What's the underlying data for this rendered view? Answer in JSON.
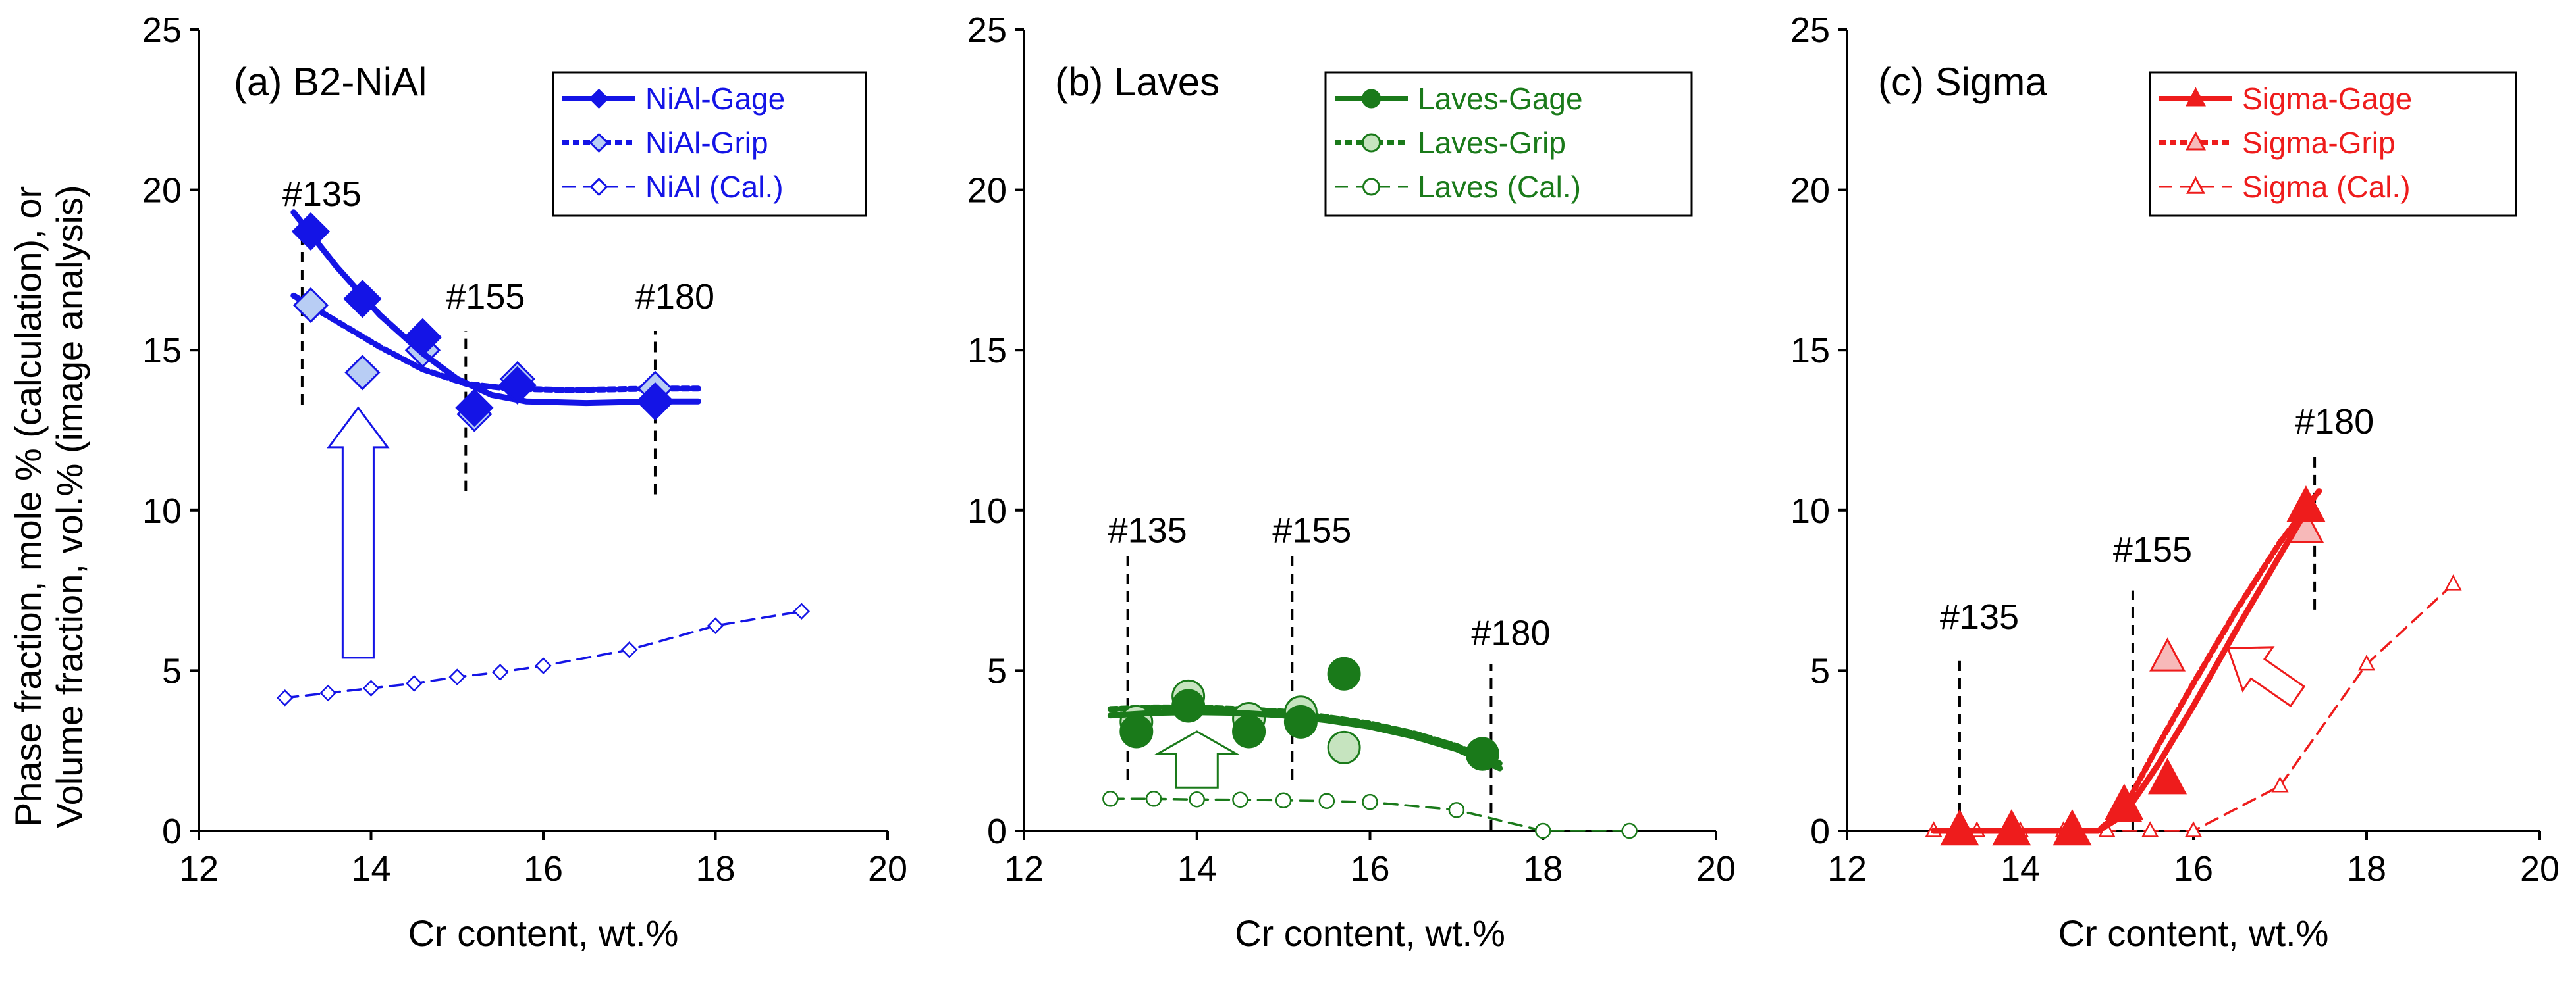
{
  "figure": {
    "ylabel_line1": "Phase fraction, mole %  (calculation), or",
    "ylabel_line2": "Volume fraction, vol.% (image analysis)"
  },
  "chart_data": [
    {
      "type": "scatter",
      "title": "(a) B2-NiAl",
      "xlabel": "Cr content, wt.%",
      "xlim": [
        12,
        20
      ],
      "ylim": [
        0,
        25
      ],
      "xticks": [
        "12",
        "14",
        "16",
        "18",
        "20"
      ],
      "yticks": [
        "0",
        "5",
        "10",
        "15",
        "20",
        "25"
      ],
      "color": "#1414e6",
      "light_fill": "#b8cdf4",
      "legend": [
        "NiAl-Gage",
        "NiAl-Grip",
        "NiAl (Cal.)"
      ],
      "series": [
        {
          "name": "NiAl-Gage",
          "marker": "diamond",
          "filled": true,
          "points": [
            [
              13.3,
              18.7
            ],
            [
              13.9,
              16.6
            ],
            [
              14.6,
              15.4
            ],
            [
              15.2,
              13.2
            ],
            [
              15.7,
              13.9
            ],
            [
              17.3,
              13.4
            ]
          ],
          "fit": [
            [
              13.1,
              19.3
            ],
            [
              13.6,
              17.6
            ],
            [
              14.1,
              16.1
            ],
            [
              14.6,
              14.9
            ],
            [
              15.0,
              14.1
            ],
            [
              15.4,
              13.6
            ],
            [
              15.8,
              13.4
            ],
            [
              16.5,
              13.35
            ],
            [
              17.3,
              13.4
            ],
            [
              17.8,
              13.4
            ]
          ]
        },
        {
          "name": "NiAl-Grip",
          "marker": "diamond",
          "filled": "light",
          "points": [
            [
              13.3,
              16.4
            ],
            [
              13.9,
              14.3
            ],
            [
              14.6,
              15.0
            ],
            [
              15.2,
              13.0
            ],
            [
              15.7,
              14.1
            ],
            [
              17.3,
              13.8
            ]
          ],
          "fit": [
            [
              13.1,
              16.7
            ],
            [
              13.6,
              15.9
            ],
            [
              14.1,
              15.1
            ],
            [
              14.6,
              14.4
            ],
            [
              15.1,
              13.95
            ],
            [
              15.6,
              13.8
            ],
            [
              16.3,
              13.75
            ],
            [
              17.3,
              13.8
            ],
            [
              17.8,
              13.8
            ]
          ]
        },
        {
          "name": "NiAl (Cal.)",
          "marker": "diamond",
          "filled": false,
          "points": [
            [
              13.0,
              4.15
            ],
            [
              13.5,
              4.3
            ],
            [
              14.0,
              4.45
            ],
            [
              14.5,
              4.6
            ],
            [
              15.0,
              4.8
            ],
            [
              15.5,
              4.95
            ],
            [
              16.0,
              5.15
            ],
            [
              17.0,
              5.65
            ],
            [
              18.0,
              6.4
            ],
            [
              19.0,
              6.85
            ]
          ]
        }
      ],
      "annotations": [
        {
          "label": "#135",
          "x": 13.2,
          "y_from": 13.3,
          "y_to": 18.6,
          "label_y": 19.5
        },
        {
          "label": "#155",
          "x": 15.1,
          "y_from": 10.6,
          "y_to": 15.6,
          "label_y": 16.3
        },
        {
          "label": "#180",
          "x": 17.3,
          "y_from": 10.5,
          "y_to": 15.6,
          "label_y": 16.3
        }
      ],
      "arrow": {
        "direction": "up",
        "x": 13.85,
        "y_from": 5.4,
        "y_to": 13.2,
        "halfwidth": 0.18
      }
    },
    {
      "type": "scatter",
      "title": "(b) Laves",
      "xlabel": "Cr content, wt.%",
      "xlim": [
        12,
        20
      ],
      "ylim": [
        0,
        25
      ],
      "xticks": [
        "12",
        "14",
        "16",
        "18",
        "20"
      ],
      "yticks": [
        "0",
        "5",
        "10",
        "15",
        "20",
        "25"
      ],
      "color": "#1a7a1a",
      "light_fill": "#c6e4bf",
      "legend": [
        "Laves-Gage",
        "Laves-Grip",
        "Laves (Cal.)"
      ],
      "series": [
        {
          "name": "Laves-Gage",
          "marker": "circle",
          "filled": true,
          "points": [
            [
              13.3,
              3.1
            ],
            [
              13.9,
              3.9
            ],
            [
              14.6,
              3.1
            ],
            [
              15.2,
              3.4
            ],
            [
              15.7,
              4.9
            ],
            [
              17.3,
              2.4
            ]
          ],
          "fit": [
            [
              13.0,
              3.6
            ],
            [
              13.5,
              3.68
            ],
            [
              14.0,
              3.7
            ],
            [
              14.5,
              3.68
            ],
            [
              15.0,
              3.6
            ],
            [
              15.5,
              3.45
            ],
            [
              16.0,
              3.25
            ],
            [
              16.5,
              2.95
            ],
            [
              17.0,
              2.55
            ],
            [
              17.5,
              1.95
            ]
          ]
        },
        {
          "name": "Laves-Grip",
          "marker": "circle",
          "filled": "light",
          "points": [
            [
              13.3,
              3.4
            ],
            [
              13.9,
              4.2
            ],
            [
              14.6,
              3.5
            ],
            [
              15.2,
              3.7
            ],
            [
              15.7,
              2.6
            ],
            [
              17.3,
              2.4
            ]
          ],
          "fit": [
            [
              13.0,
              3.8
            ],
            [
              13.5,
              3.85
            ],
            [
              14.0,
              3.85
            ],
            [
              14.5,
              3.8
            ],
            [
              15.0,
              3.72
            ],
            [
              15.5,
              3.55
            ],
            [
              16.0,
              3.35
            ],
            [
              16.5,
              3.05
            ],
            [
              17.0,
              2.65
            ],
            [
              17.5,
              2.1
            ]
          ]
        },
        {
          "name": "Laves (Cal.)",
          "marker": "circle",
          "filled": false,
          "points": [
            [
              13.0,
              1.0
            ],
            [
              13.5,
              1.0
            ],
            [
              14.0,
              0.98
            ],
            [
              14.5,
              0.97
            ],
            [
              15.0,
              0.95
            ],
            [
              15.5,
              0.93
            ],
            [
              16.0,
              0.9
            ],
            [
              17.0,
              0.65
            ],
            [
              18.0,
              0.0
            ],
            [
              19.0,
              0.0
            ]
          ]
        }
      ],
      "annotations": [
        {
          "label": "#135",
          "x": 13.2,
          "y_from": 1.6,
          "y_to": 8.8,
          "label_y": 9.0
        },
        {
          "label": "#155",
          "x": 15.1,
          "y_from": 1.6,
          "y_to": 8.8,
          "label_y": 9.0
        },
        {
          "label": "#180",
          "x": 17.4,
          "y_from": 0.0,
          "y_to": 5.2,
          "label_y": 5.8
        }
      ],
      "arrow": {
        "direction": "up",
        "x": 14.0,
        "y_from": 1.35,
        "y_to": 3.1,
        "halfwidth": 0.24
      }
    },
    {
      "type": "scatter",
      "title": "(c) Sigma",
      "xlabel": "Cr content, wt.%",
      "xlim": [
        12,
        20
      ],
      "ylim": [
        0,
        25
      ],
      "xticks": [
        "12",
        "14",
        "16",
        "18",
        "20"
      ],
      "yticks": [
        "0",
        "5",
        "10",
        "15",
        "20",
        "25"
      ],
      "color": "#ee1c1c",
      "light_fill": "#f7b9b9",
      "legend": [
        "Sigma-Gage",
        "Sigma-Grip",
        "Sigma (Cal.)"
      ],
      "series": [
        {
          "name": "Sigma-Gage",
          "marker": "triangle",
          "filled": true,
          "points": [
            [
              13.3,
              0.0
            ],
            [
              13.9,
              0.0
            ],
            [
              14.6,
              0.0
            ],
            [
              15.2,
              0.8
            ],
            [
              15.7,
              1.6
            ],
            [
              17.3,
              10.1
            ]
          ],
          "fit": [
            [
              13.0,
              0.0
            ],
            [
              14.0,
              0.0
            ],
            [
              14.9,
              0.0
            ],
            [
              15.2,
              0.5
            ],
            [
              15.6,
              2.1
            ],
            [
              16.0,
              3.9
            ],
            [
              16.5,
              6.3
            ],
            [
              17.0,
              8.6
            ],
            [
              17.35,
              10.2
            ]
          ]
        },
        {
          "name": "Sigma-Grip",
          "marker": "triangle",
          "filled": "light",
          "points": [
            [
              13.3,
              0.0
            ],
            [
              13.9,
              0.0
            ],
            [
              14.6,
              0.0
            ],
            [
              15.2,
              0.7
            ],
            [
              15.7,
              5.4
            ],
            [
              17.3,
              9.4
            ]
          ],
          "fit": [
            [
              13.0,
              0.0
            ],
            [
              14.0,
              0.0
            ],
            [
              14.9,
              0.0
            ],
            [
              15.2,
              0.7
            ],
            [
              15.6,
              2.7
            ],
            [
              16.0,
              4.6
            ],
            [
              16.5,
              6.9
            ],
            [
              17.0,
              9.0
            ],
            [
              17.45,
              10.6
            ]
          ]
        },
        {
          "name": "Sigma (Cal.)",
          "marker": "triangle",
          "filled": false,
          "points": [
            [
              13.0,
              0.0
            ],
            [
              13.5,
              0.0
            ],
            [
              14.0,
              0.0
            ],
            [
              14.5,
              0.0
            ],
            [
              15.0,
              0.0
            ],
            [
              15.5,
              0.0
            ],
            [
              16.0,
              0.0
            ],
            [
              17.0,
              1.4
            ],
            [
              18.0,
              5.2
            ],
            [
              19.0,
              7.7
            ]
          ]
        }
      ],
      "annotations": [
        {
          "label": "#135",
          "x": 13.3,
          "y_from": 0.0,
          "y_to": 5.3,
          "label_y": 6.3
        },
        {
          "label": "#155",
          "x": 15.3,
          "y_from": 0.0,
          "y_to": 7.5,
          "label_y": 8.4
        },
        {
          "label": "#180",
          "x": 17.4,
          "y_from": 6.9,
          "y_to": 11.8,
          "label_y": 12.4
        }
      ],
      "arrow": {
        "direction": "up-left",
        "from": [
          17.2,
          4.2
        ],
        "to": [
          16.4,
          5.7
        ],
        "halfwidth": 0.2
      }
    }
  ]
}
